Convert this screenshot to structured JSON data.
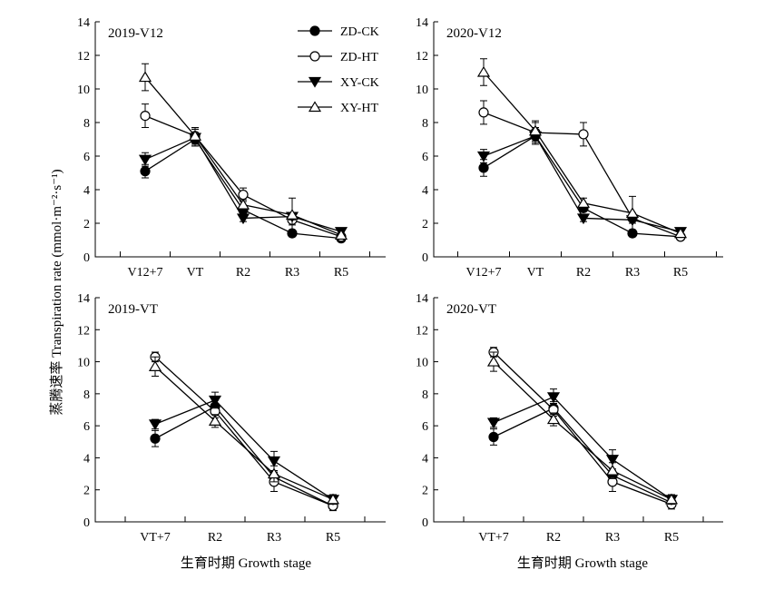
{
  "figure": {
    "ylabel": "蒸腾速率 Transpiration rate (mmol·m⁻²·s⁻¹)",
    "xlabel": "生育时期 Growth stage"
  },
  "legend": [
    {
      "name": "ZD-CK",
      "marker": "circle",
      "fill": "#000000"
    },
    {
      "name": "ZD-HT",
      "marker": "circle",
      "fill": "#ffffff"
    },
    {
      "name": "XY-CK",
      "marker": "triangle-down",
      "fill": "#000000"
    },
    {
      "name": "XY-HT",
      "marker": "triangle-up",
      "fill": "#ffffff"
    }
  ],
  "chart_data": [
    {
      "type": "line",
      "panel_label": "2019-V12",
      "categories": [
        "V12+7",
        "VT",
        "R2",
        "R3",
        "R5"
      ],
      "ylim": [
        0,
        14
      ],
      "yticks": [
        0,
        2,
        4,
        6,
        8,
        10,
        12,
        14
      ],
      "series": [
        {
          "name": "ZD-CK",
          "values": [
            5.1,
            7.0,
            2.8,
            1.4,
            1.1
          ],
          "errors": [
            0.4,
            0.4,
            0.2,
            0.2,
            0.1
          ]
        },
        {
          "name": "ZD-HT",
          "values": [
            8.4,
            7.2,
            3.7,
            2.2,
            1.2
          ],
          "errors": [
            0.7,
            0.4,
            0.4,
            0.3,
            0.2
          ]
        },
        {
          "name": "XY-CK",
          "values": [
            5.8,
            7.1,
            2.3,
            2.4,
            1.5
          ],
          "errors": [
            0.4,
            0.5,
            0.2,
            0.2,
            0.1
          ]
        },
        {
          "name": "XY-HT",
          "values": [
            10.7,
            7.2,
            3.1,
            2.5,
            1.3
          ],
          "errors": [
            0.8,
            0.5,
            0.3,
            1.0,
            0.2
          ]
        }
      ]
    },
    {
      "type": "line",
      "panel_label": "2020-V12",
      "categories": [
        "V12+7",
        "VT",
        "R2",
        "R3",
        "R5"
      ],
      "ylim": [
        0,
        14
      ],
      "yticks": [
        0,
        2,
        4,
        6,
        8,
        10,
        12,
        14
      ],
      "series": [
        {
          "name": "ZD-CK",
          "values": [
            5.3,
            7.2,
            2.9,
            1.4,
            1.2
          ],
          "errors": [
            0.5,
            0.5,
            0.2,
            0.2,
            0.1
          ]
        },
        {
          "name": "ZD-HT",
          "values": [
            8.6,
            7.4,
            7.3,
            2.3,
            1.2
          ],
          "errors": [
            0.7,
            0.6,
            0.7,
            0.3,
            0.2
          ]
        },
        {
          "name": "XY-CK",
          "values": [
            6.0,
            7.2,
            2.3,
            2.2,
            1.5
          ],
          "errors": [
            0.4,
            0.5,
            0.2,
            0.2,
            0.1
          ]
        },
        {
          "name": "XY-HT",
          "values": [
            11.0,
            7.5,
            3.2,
            2.6,
            1.4
          ],
          "errors": [
            0.8,
            0.6,
            0.3,
            1.0,
            0.2
          ]
        }
      ]
    },
    {
      "type": "line",
      "panel_label": "2019-VT",
      "categories": [
        "VT+7",
        "R2",
        "R3",
        "R5"
      ],
      "ylim": [
        0,
        14
      ],
      "yticks": [
        0,
        2,
        4,
        6,
        8,
        10,
        12,
        14
      ],
      "series": [
        {
          "name": "ZD-CK",
          "values": [
            5.2,
            7.2,
            2.8,
            1.0
          ],
          "errors": [
            0.5,
            0.4,
            0.3,
            0.2
          ]
        },
        {
          "name": "ZD-HT",
          "values": [
            10.3,
            6.9,
            2.5,
            1.0
          ],
          "errors": [
            0.3,
            0.4,
            0.6,
            0.3
          ]
        },
        {
          "name": "XY-CK",
          "values": [
            6.1,
            7.6,
            3.8,
            1.4
          ],
          "errors": [
            0.3,
            0.5,
            0.6,
            0.2
          ]
        },
        {
          "name": "XY-HT",
          "values": [
            9.7,
            6.3,
            3.0,
            1.4
          ],
          "errors": [
            0.6,
            0.4,
            0.5,
            0.3
          ]
        }
      ]
    },
    {
      "type": "line",
      "panel_label": "2020-VT",
      "categories": [
        "VT+7",
        "R2",
        "R3",
        "R5"
      ],
      "ylim": [
        0,
        14
      ],
      "yticks": [
        0,
        2,
        4,
        6,
        8,
        10,
        12,
        14
      ],
      "series": [
        {
          "name": "ZD-CK",
          "values": [
            5.3,
            7.1,
            2.9,
            1.2
          ],
          "errors": [
            0.5,
            0.4,
            0.3,
            0.2
          ]
        },
        {
          "name": "ZD-HT",
          "values": [
            10.6,
            7.0,
            2.5,
            1.1
          ],
          "errors": [
            0.3,
            0.4,
            0.6,
            0.3
          ]
        },
        {
          "name": "XY-CK",
          "values": [
            6.2,
            7.8,
            3.9,
            1.4
          ],
          "errors": [
            0.3,
            0.5,
            0.6,
            0.2
          ]
        },
        {
          "name": "XY-HT",
          "values": [
            10.0,
            6.4,
            3.2,
            1.4
          ],
          "errors": [
            0.6,
            0.4,
            0.5,
            0.3
          ]
        }
      ]
    }
  ]
}
